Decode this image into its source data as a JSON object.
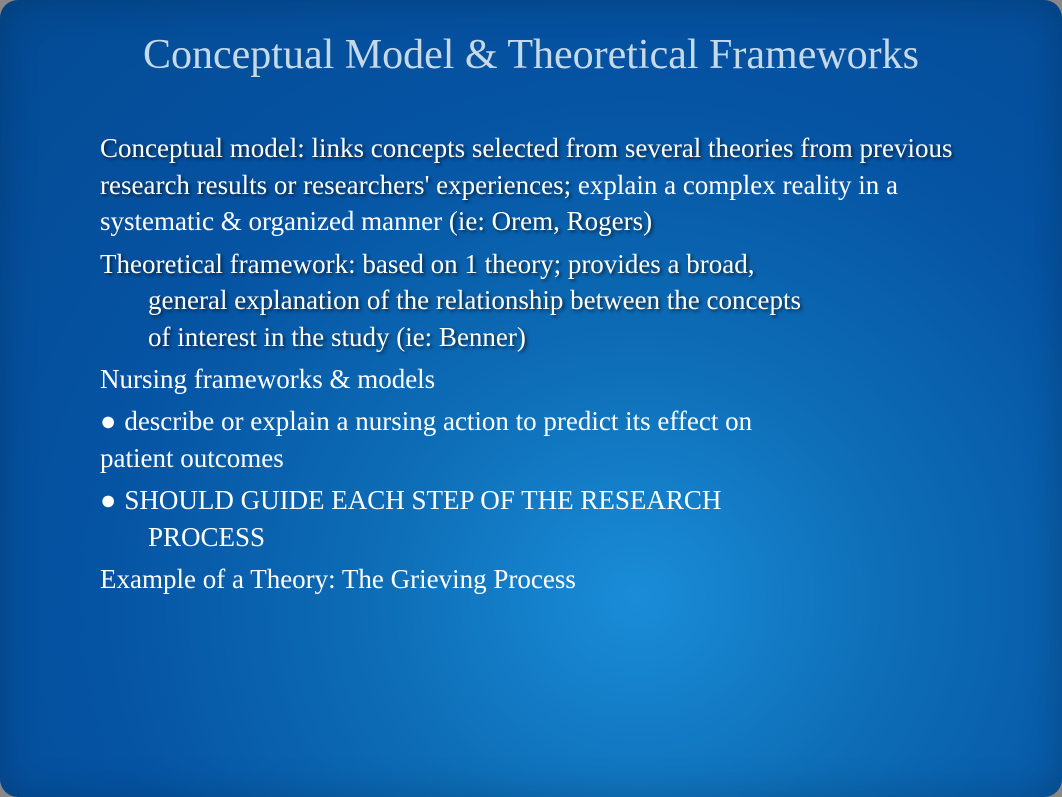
{
  "slide": {
    "title": "Conceptual Model & Theoretical Frameworks",
    "paragraph1": {
      "shadowed_a": "Conceptual model: links concepts selected from several theories from previous research results or researchers' experiences;",
      "plain_a": " explain a complex reality in a systematic & organized manner ",
      "shadowed_b": "(ie: Orem, Rogers)"
    },
    "paragraph2": {
      "line1": "Theoretical  framework: based on 1 theory; provides a broad,",
      "indent_line1": "general explanation of the relationship between the concepts",
      "indent_line2": "of interest in the study (ie: Benner)"
    },
    "paragraph3": "Nursing frameworks & models",
    "bullet1": "describe or explain a nursing action to predict its effect on",
    "bullet1_cont": "patient outcomes",
    "bullet2_line": "SHOULD GUIDE EACH STEP OF THE  RESEARCH",
    "bullet2_indent": "PROCESS",
    "example": " Example of a Theory: The Grieving Process",
    "bullet_char": "●"
  },
  "colors": {
    "title_color": "#c5d9e8",
    "body_color": "#ffffff",
    "bg_center": "#1a8dd8",
    "bg_edge": "#044a93"
  },
  "typography": {
    "title_fontsize": 42,
    "body_fontsize": 27,
    "font_family": "Georgia, Times New Roman, serif"
  }
}
